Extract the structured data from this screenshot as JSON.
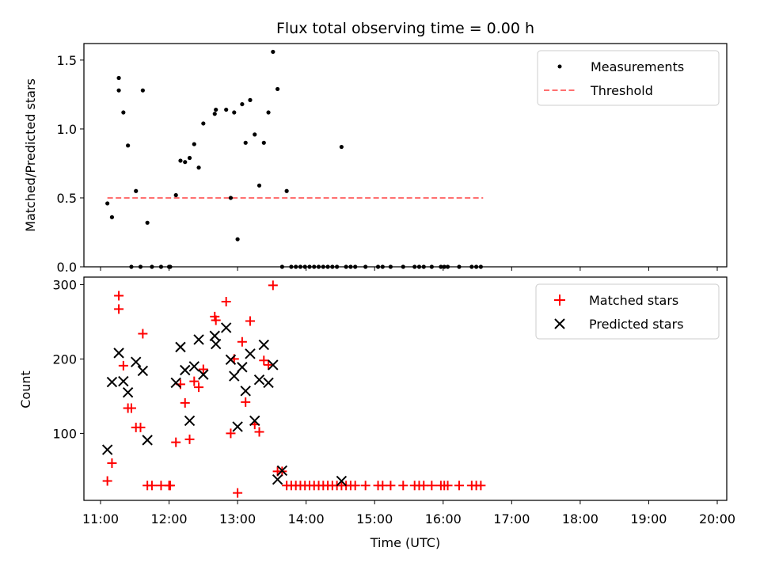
{
  "title": "Flux total observing time = 0.00 h",
  "colors": {
    "measurement": "#000000",
    "threshold": "#ff7070",
    "matched": "#ff0000",
    "predicted": "#000000"
  },
  "chart_data": [
    {
      "type": "scatter",
      "title": "Flux total observing time = 0.00 h",
      "xlabel": "",
      "ylabel": "Matched/Predicted stars",
      "xlim": [
        "11:00",
        "20:00"
      ],
      "ylim": [
        0,
        1.62
      ],
      "x_ticks": [
        "11:00",
        "12:00",
        "13:00",
        "14:00",
        "15:00",
        "16:00",
        "17:00",
        "18:00",
        "19:00",
        "20:00"
      ],
      "y_ticks": [
        "0.0",
        "0.5",
        "1.0",
        "1.5"
      ],
      "y_tick_values": [
        0,
        0.5,
        1.0,
        1.5
      ],
      "legend": {
        "position": "top-right",
        "entries": [
          "Measurements",
          "Threshold"
        ]
      },
      "series": [
        {
          "name": "Measurements",
          "marker": "dot",
          "points": [
            [
              "11:06",
              0.46
            ],
            [
              "11:10",
              0.36
            ],
            [
              "11:16",
              1.37
            ],
            [
              "11:16",
              1.28
            ],
            [
              "11:20",
              1.12
            ],
            [
              "11:24",
              0.88
            ],
            [
              "11:27",
              0.0
            ],
            [
              "11:31",
              0.55
            ],
            [
              "11:35",
              0.0
            ],
            [
              "11:37",
              1.28
            ],
            [
              "11:41",
              0.32
            ],
            [
              "11:45",
              0.0
            ],
            [
              "11:53",
              0.0
            ],
            [
              "12:00",
              0.0
            ],
            [
              "12:01",
              0.0
            ],
            [
              "12:06",
              0.52
            ],
            [
              "12:10",
              0.77
            ],
            [
              "12:14",
              0.76
            ],
            [
              "12:18",
              0.79
            ],
            [
              "12:22",
              0.89
            ],
            [
              "12:26",
              0.72
            ],
            [
              "12:30",
              1.04
            ],
            [
              "12:40",
              1.11
            ],
            [
              "12:41",
              1.14
            ],
            [
              "12:50",
              1.14
            ],
            [
              "12:54",
              0.5
            ],
            [
              "12:57",
              1.12
            ],
            [
              "13:00",
              0.2
            ],
            [
              "13:04",
              1.18
            ],
            [
              "13:07",
              0.9
            ],
            [
              "13:11",
              1.21
            ],
            [
              "13:15",
              0.96
            ],
            [
              "13:19",
              0.59
            ],
            [
              "13:23",
              0.9
            ],
            [
              "13:27",
              1.12
            ],
            [
              "13:31",
              1.56
            ],
            [
              "13:35",
              1.29
            ],
            [
              "13:39",
              0.0
            ],
            [
              "13:43",
              0.55
            ],
            [
              "13:47",
              0.0
            ],
            [
              "13:51",
              0.0
            ],
            [
              "13:55",
              0.0
            ],
            [
              "13:59",
              0.0
            ],
            [
              "14:03",
              0.0
            ],
            [
              "14:07",
              0.0
            ],
            [
              "14:11",
              0.0
            ],
            [
              "14:15",
              0.0
            ],
            [
              "14:19",
              0.0
            ],
            [
              "14:23",
              0.0
            ],
            [
              "14:27",
              0.0
            ],
            [
              "14:31",
              0.87
            ],
            [
              "14:35",
              0.0
            ],
            [
              "14:39",
              0.0
            ],
            [
              "14:43",
              0.0
            ],
            [
              "14:52",
              0.0
            ],
            [
              "15:03",
              0.0
            ],
            [
              "15:07",
              0.0
            ],
            [
              "15:14",
              0.0
            ],
            [
              "15:25",
              0.0
            ],
            [
              "15:35",
              0.0
            ],
            [
              "15:39",
              0.0
            ],
            [
              "15:43",
              0.0
            ],
            [
              "15:50",
              0.0
            ],
            [
              "15:58",
              0.0
            ],
            [
              "16:01",
              0.0
            ],
            [
              "16:04",
              0.0
            ],
            [
              "16:14",
              0.0
            ],
            [
              "16:25",
              0.0
            ],
            [
              "16:29",
              0.0
            ],
            [
              "16:33",
              0.0
            ]
          ]
        },
        {
          "name": "Threshold",
          "marker": "dashed-line",
          "line": [
            [
              "11:06",
              0.5
            ],
            [
              "16:35",
              0.5
            ]
          ]
        }
      ]
    },
    {
      "type": "scatter",
      "title": "",
      "xlabel": "Time (UTC)",
      "ylabel": "Count",
      "xlim": [
        "11:00",
        "20:00"
      ],
      "ylim": [
        10,
        310
      ],
      "x_ticks": [
        "11:00",
        "12:00",
        "13:00",
        "14:00",
        "15:00",
        "16:00",
        "17:00",
        "18:00",
        "19:00",
        "20:00"
      ],
      "y_ticks": [
        "100",
        "200",
        "300"
      ],
      "y_tick_values": [
        100,
        200,
        300
      ],
      "legend": {
        "position": "top-right",
        "entries": [
          "Matched stars",
          "Predicted stars"
        ]
      },
      "series": [
        {
          "name": "Matched stars",
          "marker": "plus",
          "points": [
            [
              "11:06",
              36
            ],
            [
              "11:10",
              60
            ],
            [
              "11:16",
              285
            ],
            [
              "11:16",
              267
            ],
            [
              "11:20",
              191
            ],
            [
              "11:24",
              134
            ],
            [
              "11:27",
              134
            ],
            [
              "11:31",
              108
            ],
            [
              "11:35",
              108
            ],
            [
              "11:37",
              234
            ],
            [
              "11:41",
              30
            ],
            [
              "11:45",
              30
            ],
            [
              "11:53",
              30
            ],
            [
              "12:00",
              30
            ],
            [
              "12:01",
              30
            ],
            [
              "12:06",
              88
            ],
            [
              "12:10",
              166
            ],
            [
              "12:14",
              141
            ],
            [
              "12:18",
              92
            ],
            [
              "12:22",
              170
            ],
            [
              "12:26",
              162
            ],
            [
              "12:30",
              186
            ],
            [
              "12:40",
              257
            ],
            [
              "12:41",
              252
            ],
            [
              "12:50",
              277
            ],
            [
              "12:54",
              100
            ],
            [
              "12:57",
              200
            ],
            [
              "13:00",
              20
            ],
            [
              "13:04",
              223
            ],
            [
              "13:07",
              142
            ],
            [
              "13:11",
              251
            ],
            [
              "13:15",
              112
            ],
            [
              "13:19",
              102
            ],
            [
              "13:23",
              198
            ],
            [
              "13:27",
              192
            ],
            [
              "13:31",
              299
            ],
            [
              "13:35",
              49
            ],
            [
              "13:39",
              49
            ],
            [
              "13:43",
              30
            ],
            [
              "13:47",
              30
            ],
            [
              "13:51",
              30
            ],
            [
              "13:55",
              30
            ],
            [
              "13:59",
              30
            ],
            [
              "14:03",
              30
            ],
            [
              "14:07",
              30
            ],
            [
              "14:11",
              30
            ],
            [
              "14:15",
              30
            ],
            [
              "14:19",
              30
            ],
            [
              "14:23",
              30
            ],
            [
              "14:27",
              30
            ],
            [
              "14:31",
              30
            ],
            [
              "14:35",
              30
            ],
            [
              "14:39",
              30
            ],
            [
              "14:43",
              30
            ],
            [
              "14:52",
              30
            ],
            [
              "15:03",
              30
            ],
            [
              "15:07",
              30
            ],
            [
              "15:14",
              30
            ],
            [
              "15:25",
              30
            ],
            [
              "15:35",
              30
            ],
            [
              "15:39",
              30
            ],
            [
              "15:43",
              30
            ],
            [
              "15:50",
              30
            ],
            [
              "15:58",
              30
            ],
            [
              "16:01",
              30
            ],
            [
              "16:04",
              30
            ],
            [
              "16:14",
              30
            ],
            [
              "16:25",
              30
            ],
            [
              "16:29",
              30
            ],
            [
              "16:33",
              30
            ]
          ]
        },
        {
          "name": "Predicted stars",
          "marker": "x",
          "points": [
            [
              "11:06",
              78
            ],
            [
              "11:10",
              169
            ],
            [
              "11:16",
              208
            ],
            [
              "11:20",
              170
            ],
            [
              "11:24",
              155
            ],
            [
              "11:31",
              196
            ],
            [
              "11:37",
              184
            ],
            [
              "11:41",
              91
            ],
            [
              "12:06",
              168
            ],
            [
              "12:10",
              216
            ],
            [
              "12:14",
              185
            ],
            [
              "12:18",
              117
            ],
            [
              "12:22",
              190
            ],
            [
              "12:26",
              226
            ],
            [
              "12:30",
              179
            ],
            [
              "12:40",
              231
            ],
            [
              "12:41",
              220
            ],
            [
              "12:50",
              242
            ],
            [
              "12:54",
              199
            ],
            [
              "12:57",
              177
            ],
            [
              "13:00",
              109
            ],
            [
              "13:04",
              189
            ],
            [
              "13:07",
              157
            ],
            [
              "13:11",
              207
            ],
            [
              "13:15",
              117
            ],
            [
              "13:19",
              172
            ],
            [
              "13:23",
              219
            ],
            [
              "13:27",
              168
            ],
            [
              "13:31",
              192
            ],
            [
              "13:35",
              38
            ],
            [
              "13:39",
              50
            ],
            [
              "14:31",
              36
            ]
          ]
        }
      ]
    }
  ]
}
